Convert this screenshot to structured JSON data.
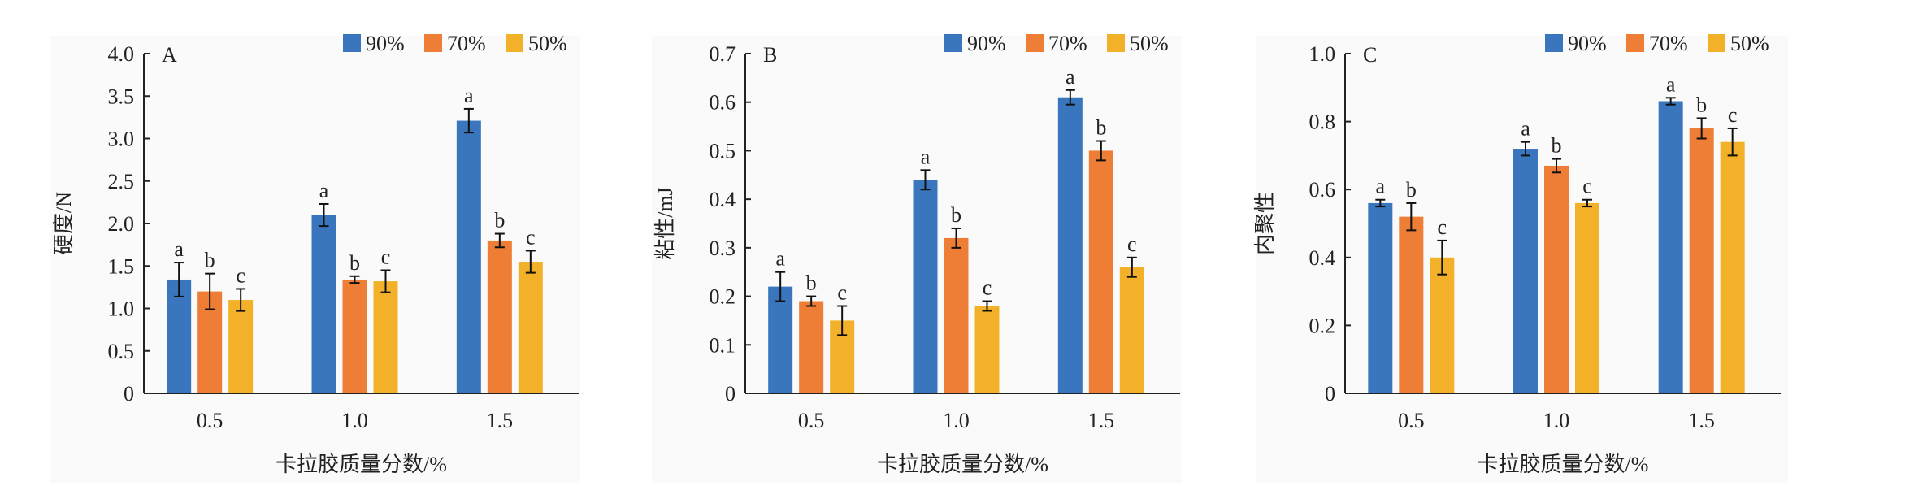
{
  "colors": {
    "90%": "#3a76bd",
    "70%": "#ee7d35",
    "50%": "#f3b12a"
  },
  "chart_data": [
    {
      "type": "bar",
      "panel_label": "A",
      "xlabel": "卡拉胶质量分数/%",
      "ylabel": "硬度/N",
      "categories": [
        "0.5",
        "1.0",
        "1.5"
      ],
      "ylim": [
        0,
        4.0
      ],
      "yticks": [
        0,
        0.5,
        1.0,
        1.5,
        2.0,
        2.5,
        3.0,
        3.5,
        4.0
      ],
      "ytick_labels": [
        "0",
        "0.5",
        "1.0",
        "1.5",
        "2.0",
        "2.5",
        "3.0",
        "3.5",
        "4.0"
      ],
      "legend": "top-right",
      "series": [
        {
          "name": "90%",
          "values": [
            1.34,
            2.1,
            3.21
          ],
          "errors": [
            0.2,
            0.13,
            0.14
          ],
          "letters": [
            "a",
            "a",
            "a"
          ]
        },
        {
          "name": "70%",
          "values": [
            1.2,
            1.34,
            1.8
          ],
          "errors": [
            0.21,
            0.04,
            0.08
          ],
          "letters": [
            "b",
            "b",
            "b"
          ]
        },
        {
          "name": "50%",
          "values": [
            1.1,
            1.32,
            1.55
          ],
          "errors": [
            0.13,
            0.13,
            0.13
          ],
          "letters": [
            "c",
            "c",
            "c"
          ]
        }
      ]
    },
    {
      "type": "bar",
      "panel_label": "B",
      "xlabel": "卡拉胶质量分数/%",
      "ylabel": "粘性/mJ",
      "categories": [
        "0.5",
        "1.0",
        "1.5"
      ],
      "ylim": [
        0,
        0.7
      ],
      "yticks": [
        0,
        0.1,
        0.2,
        0.3,
        0.4,
        0.5,
        0.6,
        0.7
      ],
      "ytick_labels": [
        "0",
        "0.1",
        "0.2",
        "0.3",
        "0.4",
        "0.5",
        "0.6",
        "0.7"
      ],
      "legend": "top-right",
      "series": [
        {
          "name": "90%",
          "values": [
            0.22,
            0.44,
            0.61
          ],
          "errors": [
            0.03,
            0.02,
            0.015
          ],
          "letters": [
            "a",
            "a",
            "a"
          ]
        },
        {
          "name": "70%",
          "values": [
            0.19,
            0.32,
            0.5
          ],
          "errors": [
            0.01,
            0.02,
            0.02
          ],
          "letters": [
            "b",
            "b",
            "b"
          ]
        },
        {
          "name": "50%",
          "values": [
            0.15,
            0.18,
            0.26
          ],
          "errors": [
            0.03,
            0.01,
            0.02
          ],
          "letters": [
            "c",
            "c",
            "c"
          ]
        }
      ]
    },
    {
      "type": "bar",
      "panel_label": "C",
      "xlabel": "卡拉胶质量分数/%",
      "ylabel": "内聚性",
      "categories": [
        "0.5",
        "1.0",
        "1.5"
      ],
      "ylim": [
        0,
        1.0
      ],
      "yticks": [
        0,
        0.2,
        0.4,
        0.6,
        0.8,
        1.0
      ],
      "ytick_labels": [
        "0",
        "0.2",
        "0.4",
        "0.6",
        "0.8",
        "1.0"
      ],
      "legend": "top-right",
      "series": [
        {
          "name": "90%",
          "values": [
            0.56,
            0.72,
            0.86
          ],
          "errors": [
            0.01,
            0.02,
            0.01
          ],
          "letters": [
            "a",
            "a",
            "a"
          ]
        },
        {
          "name": "70%",
          "values": [
            0.52,
            0.67,
            0.78
          ],
          "errors": [
            0.04,
            0.02,
            0.03
          ],
          "letters": [
            "b",
            "b",
            "b"
          ]
        },
        {
          "name": "50%",
          "values": [
            0.4,
            0.56,
            0.74
          ],
          "errors": [
            0.05,
            0.01,
            0.04
          ],
          "letters": [
            "c",
            "c",
            "c"
          ]
        }
      ]
    }
  ]
}
